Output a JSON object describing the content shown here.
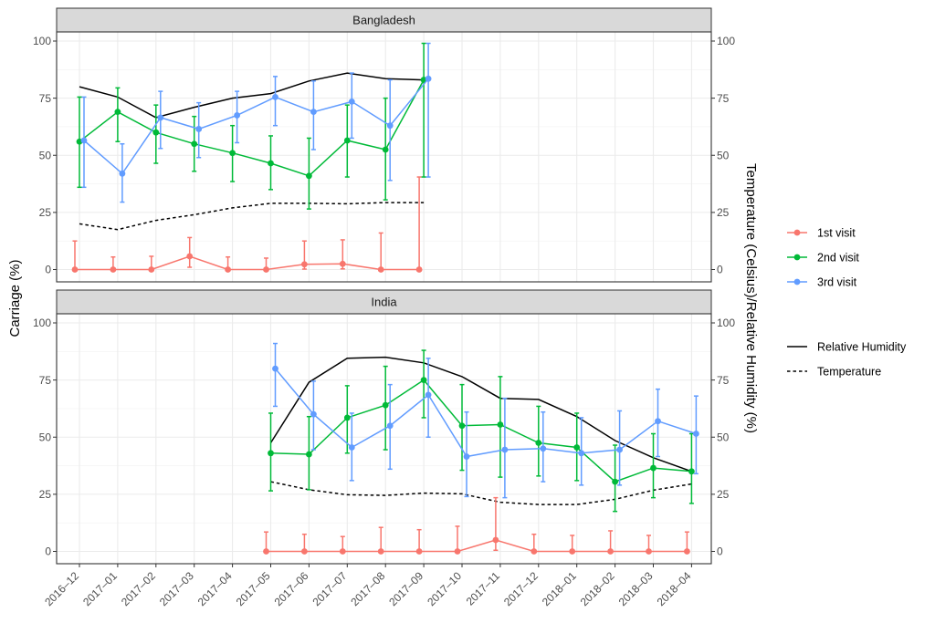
{
  "chart_data": {
    "type": "line",
    "xlabel": "",
    "ylabel": "Carriage (%)",
    "ylabel_right": "Temperature (Celsius)/Relative Humidity (%)",
    "ylim": [
      0,
      100
    ],
    "yticks": [
      0,
      25,
      50,
      75,
      100
    ],
    "x": [
      "2016–12",
      "2017–01",
      "2017–02",
      "2017–03",
      "2017–04",
      "2017–05",
      "2017–06",
      "2017–07",
      "2017–08",
      "2017–09",
      "2017–10",
      "2017–11",
      "2017–12",
      "2018–01",
      "2018–02",
      "2018–03",
      "2018–04"
    ],
    "grid": true,
    "legend_position": "right",
    "visit_legend": [
      {
        "name": "1st visit",
        "color": "#F8766D"
      },
      {
        "name": "2nd visit",
        "color": "#00BA38"
      },
      {
        "name": "3rd visit",
        "color": "#619CFF"
      }
    ],
    "line_legend": [
      {
        "name": "Relative Humidity",
        "style": "solid"
      },
      {
        "name": "Temperature",
        "style": "dashed"
      }
    ],
    "panels": [
      {
        "title": "Bangladesh",
        "visits": [
          {
            "name": "1st visit",
            "color": "#F8766D",
            "points": [
              {
                "x": 0,
                "y": 0,
                "lo": 0,
                "hi": 12.5
              },
              {
                "x": 1,
                "y": 0,
                "lo": 0,
                "hi": 5.5
              },
              {
                "x": 2,
                "y": 0,
                "lo": 0,
                "hi": 5.8
              },
              {
                "x": 3,
                "y": 5.8,
                "lo": 1,
                "hi": 14
              },
              {
                "x": 4,
                "y": 0,
                "lo": 0,
                "hi": 5.5
              },
              {
                "x": 5,
                "y": 0,
                "lo": 0,
                "hi": 5
              },
              {
                "x": 6,
                "y": 2.3,
                "lo": 0.2,
                "hi": 12.5
              },
              {
                "x": 7,
                "y": 2.5,
                "lo": 0.3,
                "hi": 13
              },
              {
                "x": 8,
                "y": 0,
                "lo": 0,
                "hi": 16
              },
              {
                "x": 9,
                "y": 0,
                "lo": 0,
                "hi": 40.5
              }
            ]
          },
          {
            "name": "2nd visit",
            "color": "#00BA38",
            "points": [
              {
                "x": 0,
                "y": 56,
                "lo": 36,
                "hi": 75.5
              },
              {
                "x": 1,
                "y": 69,
                "lo": 56,
                "hi": 79.5
              },
              {
                "x": 2,
                "y": 60,
                "lo": 46.5,
                "hi": 72
              },
              {
                "x": 3,
                "y": 55,
                "lo": 43,
                "hi": 67
              },
              {
                "x": 4,
                "y": 51,
                "lo": 38.5,
                "hi": 63
              },
              {
                "x": 5,
                "y": 46.5,
                "lo": 35,
                "hi": 58.5
              },
              {
                "x": 6,
                "y": 41,
                "lo": 26.5,
                "hi": 57.5
              },
              {
                "x": 7,
                "y": 56.5,
                "lo": 40.5,
                "hi": 72
              },
              {
                "x": 8,
                "y": 52.5,
                "lo": 30.5,
                "hi": 75
              },
              {
                "x": 9,
                "y": 83,
                "lo": 40.5,
                "hi": 99
              }
            ]
          },
          {
            "name": "3rd visit",
            "color": "#619CFF",
            "points": [
              {
                "x": 0,
                "y": 56.5,
                "lo": 36,
                "hi": 75.5
              },
              {
                "x": 1,
                "y": 42,
                "lo": 29.5,
                "hi": 55
              },
              {
                "x": 2,
                "y": 66.5,
                "lo": 53,
                "hi": 78
              },
              {
                "x": 3,
                "y": 61.5,
                "lo": 49,
                "hi": 73
              },
              {
                "x": 4,
                "y": 67.5,
                "lo": 55.5,
                "hi": 78
              },
              {
                "x": 5,
                "y": 75.5,
                "lo": 63,
                "hi": 84.5
              },
              {
                "x": 6,
                "y": 69,
                "lo": 52.5,
                "hi": 82.5
              },
              {
                "x": 7,
                "y": 73.5,
                "lo": 57.5,
                "hi": 86
              },
              {
                "x": 8,
                "y": 63,
                "lo": 39,
                "hi": 83
              },
              {
                "x": 9,
                "y": 83.5,
                "lo": 40.5,
                "hi": 99
              }
            ]
          }
        ],
        "humidity": {
          "x": [
            0,
            1,
            2,
            3,
            4,
            5,
            6,
            7,
            8,
            9
          ],
          "y": [
            80,
            75.5,
            66.5,
            71,
            75,
            77,
            82.5,
            86,
            83.5,
            83
          ]
        },
        "temperature": {
          "x": [
            0,
            1,
            2,
            3,
            4,
            5,
            6,
            7,
            8,
            9
          ],
          "y": [
            20,
            17.5,
            21.5,
            24,
            27,
            29,
            29,
            28.8,
            29.3,
            29.3
          ]
        }
      },
      {
        "title": "India",
        "visits": [
          {
            "name": "1st visit",
            "color": "#F8766D",
            "points": [
              {
                "x": 5,
                "y": 0,
                "lo": 0,
                "hi": 8.5
              },
              {
                "x": 6,
                "y": 0,
                "lo": 0,
                "hi": 7.5
              },
              {
                "x": 7,
                "y": 0,
                "lo": 0,
                "hi": 6.5
              },
              {
                "x": 8,
                "y": 0,
                "lo": 0,
                "hi": 10.5
              },
              {
                "x": 9,
                "y": 0,
                "lo": 0,
                "hi": 9.5
              },
              {
                "x": 10,
                "y": 0,
                "lo": 0,
                "hi": 11
              },
              {
                "x": 11,
                "y": 5,
                "lo": 0.5,
                "hi": 23.5
              },
              {
                "x": 12,
                "y": 0,
                "lo": 0,
                "hi": 7.5
              },
              {
                "x": 13,
                "y": 0,
                "lo": 0,
                "hi": 7
              },
              {
                "x": 14,
                "y": 0,
                "lo": 0,
                "hi": 9
              },
              {
                "x": 15,
                "y": 0,
                "lo": 0,
                "hi": 7
              },
              {
                "x": 16,
                "y": 0,
                "lo": 0,
                "hi": 8.5
              }
            ]
          },
          {
            "name": "2nd visit",
            "color": "#00BA38",
            "points": [
              {
                "x": 5,
                "y": 43,
                "lo": 26.5,
                "hi": 60.5
              },
              {
                "x": 6,
                "y": 42.5,
                "lo": 27,
                "hi": 59
              },
              {
                "x": 7,
                "y": 58.5,
                "lo": 43,
                "hi": 72.5
              },
              {
                "x": 8,
                "y": 64,
                "lo": 44.5,
                "hi": 81
              },
              {
                "x": 9,
                "y": 75,
                "lo": 58.5,
                "hi": 88
              },
              {
                "x": 10,
                "y": 55,
                "lo": 35.5,
                "hi": 73
              },
              {
                "x": 11,
                "y": 55.5,
                "lo": 32.5,
                "hi": 76.5
              },
              {
                "x": 12,
                "y": 47.5,
                "lo": 33,
                "hi": 63.5
              },
              {
                "x": 13,
                "y": 45.5,
                "lo": 31,
                "hi": 60.5
              },
              {
                "x": 14,
                "y": 30.5,
                "lo": 17.5,
                "hi": 46.5
              },
              {
                "x": 15,
                "y": 36.5,
                "lo": 23.5,
                "hi": 51.5
              },
              {
                "x": 16,
                "y": 35,
                "lo": 21,
                "hi": 51.5
              }
            ]
          },
          {
            "name": "3rd visit",
            "color": "#619CFF",
            "points": [
              {
                "x": 5,
                "y": 80,
                "lo": 63.5,
                "hi": 91
              },
              {
                "x": 6,
                "y": 60,
                "lo": 44.5,
                "hi": 74.5
              },
              {
                "x": 7,
                "y": 45.5,
                "lo": 31,
                "hi": 60.5
              },
              {
                "x": 8,
                "y": 55,
                "lo": 36,
                "hi": 73
              },
              {
                "x": 9,
                "y": 68.5,
                "lo": 50,
                "hi": 84.5
              },
              {
                "x": 10,
                "y": 41.5,
                "lo": 24,
                "hi": 61
              },
              {
                "x": 11,
                "y": 44.5,
                "lo": 23.5,
                "hi": 67
              },
              {
                "x": 12,
                "y": 45,
                "lo": 30.5,
                "hi": 61
              },
              {
                "x": 13,
                "y": 43,
                "lo": 29,
                "hi": 58.5
              },
              {
                "x": 14,
                "y": 44.5,
                "lo": 29,
                "hi": 61.5
              },
              {
                "x": 15,
                "y": 57,
                "lo": 41.5,
                "hi": 71
              },
              {
                "x": 16,
                "y": 51.5,
                "lo": 34,
                "hi": 68
              }
            ]
          }
        ],
        "humidity": {
          "x": [
            5,
            6,
            7,
            8,
            9,
            10,
            11,
            12,
            13,
            14,
            15,
            16
          ],
          "y": [
            47.5,
            74,
            84.5,
            85,
            82.5,
            76.5,
            67,
            66.5,
            59,
            48.5,
            41,
            35
          ]
        },
        "temperature": {
          "x": [
            5,
            6,
            7,
            8,
            9,
            10,
            11,
            12,
            13,
            14,
            15,
            16
          ],
          "y": [
            30.5,
            27,
            24.8,
            24.5,
            25.5,
            25.2,
            21.5,
            20.5,
            20.5,
            22.8,
            26.8,
            29.5
          ]
        }
      }
    ]
  }
}
